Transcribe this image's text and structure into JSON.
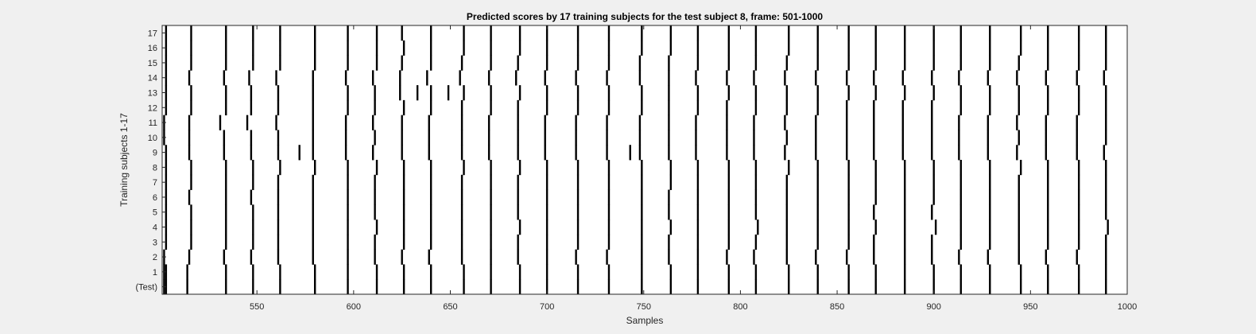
{
  "chart_data": {
    "type": "heatmap",
    "title": "Predicted scores by 17 training subjects for the test subject 8, frame: 501-1000",
    "xlabel": "Samples",
    "ylabel": "Training subjects 1-17",
    "xlim": [
      501,
      1000
    ],
    "x_ticks": [
      550,
      600,
      650,
      700,
      750,
      800,
      850,
      900,
      950,
      1000
    ],
    "y_tick_labels": [
      "(Test)",
      "1",
      "2",
      "3",
      "4",
      "5",
      "6",
      "7",
      "8",
      "9",
      "10",
      "11",
      "12",
      "13",
      "14",
      "15",
      "16",
      "17"
    ],
    "colors": {
      "background": "#ffffff",
      "mark": "#000000",
      "figure_bg": "#f0f0f0"
    },
    "mark_description": "black vertical segment marks the predicted score (beat) sample per row",
    "rows": [
      {
        "label": "(Test)",
        "x": [
          502,
          503,
          514,
          534,
          548,
          562,
          580,
          597,
          612,
          626,
          640,
          657,
          671,
          686,
          700,
          716,
          732,
          749,
          764,
          778,
          794,
          808,
          825,
          840,
          856,
          870,
          885,
          900,
          914,
          929,
          945,
          959,
          975,
          989
        ]
      },
      {
        "label": "1",
        "x": [
          502,
          503,
          514,
          534,
          548,
          562,
          580,
          597,
          612,
          626,
          640,
          657,
          671,
          686,
          700,
          716,
          732,
          749,
          764,
          778,
          794,
          808,
          825,
          840,
          856,
          870,
          885,
          900,
          914,
          929,
          945,
          959,
          975,
          989
        ]
      },
      {
        "label": "2",
        "x": [
          502,
          515,
          533,
          547,
          561,
          579,
          597,
          611,
          625,
          639,
          656,
          671,
          685,
          700,
          715,
          731,
          749,
          763,
          778,
          793,
          807,
          824,
          839,
          855,
          869,
          885,
          899,
          913,
          928,
          944,
          958,
          974,
          989
        ]
      },
      {
        "label": "3",
        "x": [
          503,
          516,
          534,
          548,
          561,
          579,
          597,
          611,
          626,
          640,
          656,
          671,
          685,
          700,
          716,
          732,
          749,
          763,
          778,
          794,
          808,
          824,
          840,
          856,
          869,
          885,
          899,
          914,
          929,
          944,
          959,
          975,
          989
        ]
      },
      {
        "label": "4",
        "x": [
          503,
          516,
          534,
          548,
          561,
          579,
          597,
          612,
          626,
          640,
          656,
          671,
          686,
          700,
          716,
          732,
          749,
          764,
          778,
          794,
          809,
          824,
          840,
          856,
          870,
          885,
          901,
          914,
          929,
          944,
          959,
          975,
          990
        ]
      },
      {
        "label": "5",
        "x": [
          503,
          516,
          534,
          548,
          561,
          579,
          597,
          611,
          626,
          640,
          656,
          671,
          685,
          700,
          716,
          732,
          749,
          763,
          778,
          794,
          808,
          824,
          840,
          856,
          869,
          885,
          899,
          914,
          929,
          944,
          959,
          975,
          989
        ]
      },
      {
        "label": "6",
        "x": [
          503,
          515,
          534,
          547,
          561,
          579,
          597,
          611,
          626,
          640,
          656,
          671,
          685,
          700,
          716,
          732,
          749,
          763,
          778,
          794,
          808,
          824,
          840,
          856,
          870,
          885,
          900,
          914,
          929,
          944,
          959,
          975,
          989
        ]
      },
      {
        "label": "7",
        "x": [
          503,
          516,
          534,
          548,
          561,
          579,
          597,
          611,
          626,
          640,
          656,
          671,
          685,
          700,
          716,
          732,
          749,
          764,
          778,
          794,
          808,
          824,
          840,
          856,
          870,
          885,
          900,
          914,
          929,
          944,
          959,
          975,
          989
        ]
      },
      {
        "label": "8",
        "x": [
          503,
          516,
          534,
          548,
          562,
          580,
          597,
          612,
          626,
          640,
          657,
          671,
          686,
          700,
          716,
          732,
          749,
          764,
          778,
          794,
          808,
          825,
          840,
          856,
          870,
          885,
          900,
          914,
          929,
          945,
          959,
          975,
          989
        ]
      },
      {
        "label": "9",
        "x": [
          503,
          515,
          533,
          547,
          561,
          572,
          579,
          596,
          610,
          625,
          639,
          656,
          670,
          685,
          699,
          715,
          731,
          743,
          748,
          763,
          777,
          793,
          807,
          823,
          839,
          855,
          869,
          884,
          899,
          913,
          928,
          943,
          958,
          974,
          988
        ]
      },
      {
        "label": "10",
        "x": [
          502,
          515,
          533,
          547,
          561,
          579,
          596,
          611,
          625,
          639,
          656,
          670,
          685,
          699,
          715,
          731,
          748,
          763,
          777,
          793,
          807,
          824,
          839,
          855,
          869,
          884,
          899,
          913,
          928,
          944,
          958,
          974,
          989
        ]
      },
      {
        "label": "11",
        "x": [
          502,
          515,
          531,
          545,
          560,
          579,
          596,
          610,
          625,
          639,
          656,
          670,
          685,
          699,
          715,
          731,
          748,
          763,
          777,
          793,
          807,
          823,
          839,
          855,
          869,
          884,
          899,
          913,
          928,
          943,
          958,
          974,
          989
        ]
      },
      {
        "label": "12",
        "x": [
          503,
          516,
          534,
          547,
          561,
          579,
          597,
          611,
          626,
          640,
          656,
          671,
          685,
          700,
          716,
          732,
          749,
          763,
          778,
          793,
          808,
          824,
          840,
          855,
          869,
          884,
          899,
          914,
          929,
          944,
          959,
          975,
          989
        ]
      },
      {
        "label": "13",
        "x": [
          503,
          516,
          534,
          547,
          561,
          579,
          597,
          611,
          624,
          633,
          640,
          649,
          657,
          671,
          686,
          700,
          716,
          732,
          749,
          763,
          778,
          794,
          808,
          824,
          840,
          856,
          870,
          885,
          900,
          914,
          929,
          944,
          959,
          975,
          989
        ]
      },
      {
        "label": "14",
        "x": [
          503,
          515,
          533,
          546,
          560,
          579,
          596,
          610,
          624,
          638,
          655,
          670,
          684,
          699,
          715,
          731,
          748,
          763,
          777,
          793,
          807,
          823,
          839,
          855,
          869,
          884,
          899,
          913,
          928,
          943,
          958,
          974,
          988
        ]
      },
      {
        "label": "15",
        "x": [
          503,
          516,
          534,
          548,
          562,
          580,
          597,
          612,
          625,
          640,
          656,
          671,
          685,
          700,
          716,
          732,
          748,
          763,
          778,
          794,
          808,
          824,
          840,
          856,
          870,
          885,
          900,
          914,
          929,
          944,
          959,
          975,
          989
        ]
      },
      {
        "label": "16",
        "x": [
          503,
          516,
          534,
          548,
          562,
          580,
          597,
          612,
          626,
          640,
          657,
          671,
          686,
          700,
          716,
          732,
          749,
          764,
          778,
          794,
          808,
          825,
          840,
          856,
          870,
          885,
          900,
          914,
          929,
          945,
          959,
          975,
          989
        ]
      },
      {
        "label": "17",
        "x": [
          503,
          516,
          534,
          548,
          562,
          580,
          597,
          612,
          625,
          640,
          657,
          671,
          686,
          700,
          716,
          732,
          749,
          764,
          778,
          794,
          808,
          825,
          840,
          856,
          870,
          885,
          900,
          914,
          929,
          945,
          959,
          975,
          989
        ]
      }
    ],
    "grid": false,
    "legend": "none"
  }
}
